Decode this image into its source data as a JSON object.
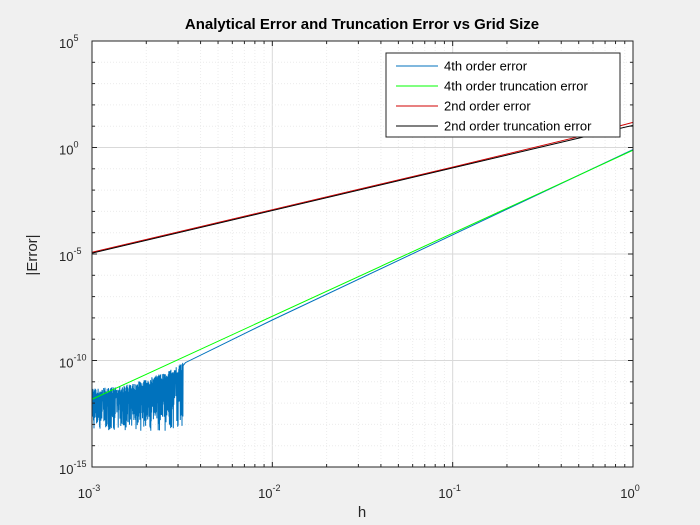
{
  "chart_data": {
    "type": "line",
    "title": "Analytical Error and Truncation Error vs Grid Size",
    "xlabel": "h",
    "ylabel": "|Error|",
    "xscale": "log",
    "yscale": "log",
    "xlim": [
      0.001,
      1
    ],
    "ylim": [
      1e-15,
      100000
    ],
    "grid": true,
    "minor_grid": true,
    "legend_placement": "top-right",
    "x_tick_labels": [
      {
        "value": 0.001,
        "base": "10",
        "exp": "-3"
      },
      {
        "value": 0.01,
        "base": "10",
        "exp": "-2"
      },
      {
        "value": 0.1,
        "base": "10",
        "exp": "-1"
      },
      {
        "value": 1,
        "base": "10",
        "exp": "0"
      }
    ],
    "y_tick_labels": [
      {
        "value": 1e-15,
        "base": "10",
        "exp": "-15"
      },
      {
        "value": 1e-10,
        "base": "10",
        "exp": "-10"
      },
      {
        "value": 1e-05,
        "base": "10",
        "exp": "-5"
      },
      {
        "value": 1,
        "base": "10",
        "exp": "0"
      },
      {
        "value": 100000,
        "base": "10",
        "exp": "5"
      }
    ],
    "series": [
      {
        "name": "4th order error",
        "color": "#0072bd",
        "x": [
          0.001,
          0.0015,
          0.002,
          0.0025,
          0.003,
          0.0033,
          0.01,
          0.1,
          1
        ],
        "y": [
          1e-12,
          2e-12,
          4e-12,
          1e-11,
          3e-11,
          8e-11,
          8e-09,
          8e-05,
          0.8
        ],
        "noise_floor": {
          "x_max": 0.0032,
          "upper": 5e-12,
          "lower": 5e-14
        }
      },
      {
        "name": "4th order truncation error",
        "color": "#00ff00",
        "x": [
          0.001,
          1
        ],
        "y": [
          1.5e-12,
          0.75
        ]
      },
      {
        "name": "2nd order error",
        "color": "#d00000",
        "x": [
          0.001,
          0.01,
          0.1,
          0.5,
          1
        ],
        "y": [
          1.2e-05,
          0.0012,
          0.12,
          3.2,
          15
        ]
      },
      {
        "name": "2nd order truncation error",
        "color": "#000000",
        "x": [
          0.001,
          1
        ],
        "y": [
          1.1e-05,
          11
        ]
      }
    ]
  }
}
